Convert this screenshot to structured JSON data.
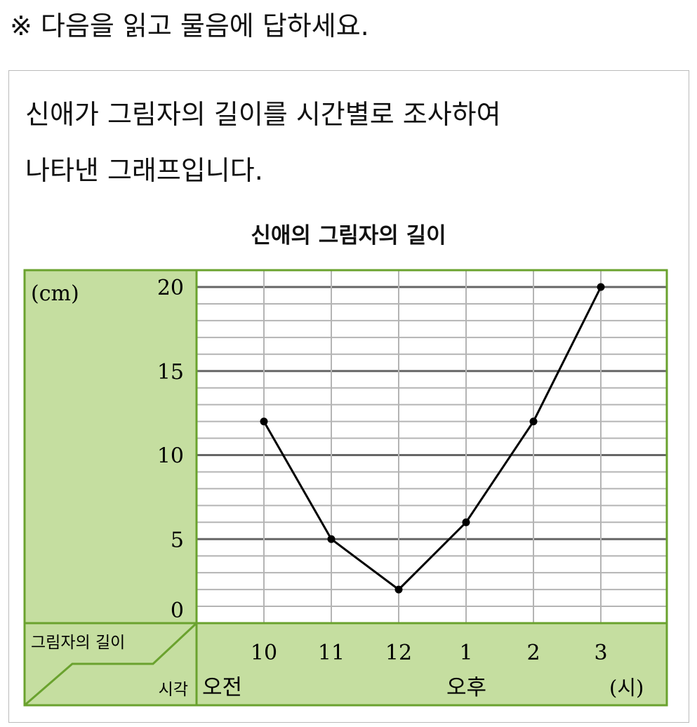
{
  "instruction": "※ 다음을 읽고 물음에 답하세요.",
  "question_lines": [
    "신애가 그림자의 길이를 시간별로 조사하여",
    "나타낸 그래프입니다."
  ],
  "chart_data": {
    "type": "line",
    "title": "신애의 그림자의 길이",
    "ylabel": "(cm)",
    "corner_top": "그림자의 길이",
    "corner_bottom": "시각",
    "x_categories": [
      "10",
      "11",
      "12",
      "1",
      "2",
      "3"
    ],
    "x_groups": [
      "오전",
      "오후"
    ],
    "x_unit": "(시)",
    "y_ticks": [
      "0",
      "5",
      "10",
      "15",
      "20"
    ],
    "ylim": [
      0,
      20
    ],
    "minor_grid_step": 1,
    "major_grid_step": 5,
    "values": [
      12,
      5,
      2,
      6,
      12,
      20
    ],
    "colors": {
      "panel": "#c5dea0",
      "border": "#6aa22e",
      "line": "#000000"
    }
  }
}
